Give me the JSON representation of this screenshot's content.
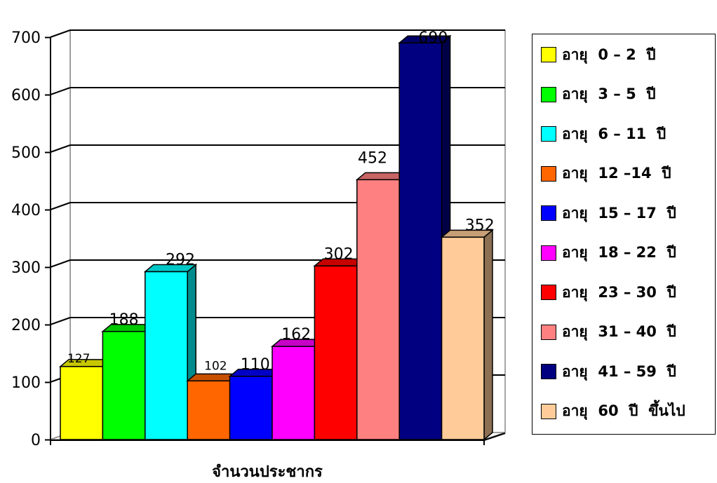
{
  "chart_data": {
    "type": "bar",
    "xlabel": "จำนวนประชากร",
    "ylabel": "",
    "ylim": [
      0,
      700
    ],
    "yticks": [
      0,
      100,
      200,
      300,
      400,
      500,
      600,
      700
    ],
    "grid": true,
    "legend_position": "right",
    "series": [
      {
        "name": "อายุ  0 – 2  ปี",
        "value": 127,
        "label": "127",
        "color": "#ffff00"
      },
      {
        "name": "อายุ  3 – 5  ปี",
        "value": 188,
        "label": "188",
        "color": "#00ff00"
      },
      {
        "name": "อายุ  6 – 11  ปี",
        "value": 292,
        "label": "292",
        "color": "#00ffff"
      },
      {
        "name": "อายุ  12 –14  ปี",
        "value": 102,
        "label": "102",
        "color": "#ff6600"
      },
      {
        "name": "อายุ  15 – 17  ปี",
        "value": 110,
        "label": "110",
        "color": "#0000ff"
      },
      {
        "name": "อายุ  18 – 22  ปี",
        "value": 162,
        "label": "162",
        "color": "#ff00ff"
      },
      {
        "name": "อายุ  23 – 30  ปี",
        "value": 302,
        "label": "302",
        "color": "#ff0000"
      },
      {
        "name": "อายุ  31 – 40  ปี",
        "value": 452,
        "label": "452",
        "color": "#ff8080"
      },
      {
        "name": "อายุ  41 – 59  ปี",
        "value": 690,
        "label": "690",
        "color": "#000080"
      },
      {
        "name": "อายุ  60  ปี  ขึ้นไป",
        "value": 352,
        "label": "352",
        "color": "#ffcc99"
      }
    ]
  }
}
